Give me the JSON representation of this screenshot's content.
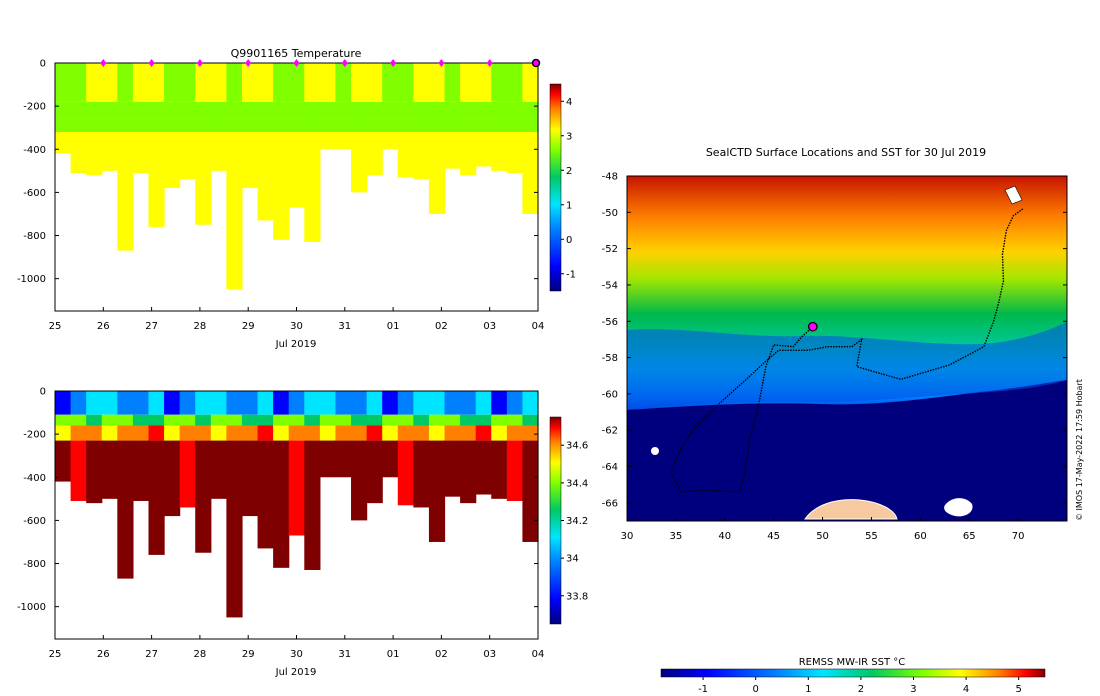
{
  "chart_data": [
    {
      "type": "heatmap",
      "id": "temperature-section",
      "title": "Q9901165  Temperature",
      "xlabel": "Jul 2019",
      "ylabel": "",
      "x_tick_labels": [
        "25",
        "26",
        "27",
        "28",
        "29",
        "30",
        "31",
        "01",
        "02",
        "03",
        "04"
      ],
      "xlim": [
        0,
        10
      ],
      "y_tick_values": [
        0,
        -200,
        -400,
        -600,
        -800,
        -1000
      ],
      "ylim": [
        -1150,
        0
      ],
      "profile_markers_x": [
        1,
        2,
        3,
        4,
        5,
        6,
        7,
        8,
        9
      ],
      "last_profile_x": 10,
      "profile_depths": [
        -420,
        -510,
        -520,
        -500,
        -870,
        -510,
        -760,
        -580,
        -540,
        -750,
        -500,
        -1050,
        -580,
        -730,
        -820,
        -670,
        -830,
        -400,
        -400,
        -600,
        -520,
        -400,
        -530,
        -540,
        -700,
        -490,
        -520,
        -480,
        -500,
        -510,
        -700
      ],
      "colorbar": {
        "min": -1.5,
        "max": 4.5,
        "ticks": [
          -1,
          0,
          1,
          2,
          3,
          4
        ],
        "palette": "jet-dark"
      },
      "bands": [
        {
          "from_depth": 0,
          "to_depth": -180,
          "value": 2.1
        },
        {
          "from_depth": -180,
          "to_depth": -260,
          "value": 1.7
        },
        {
          "from_depth": -260,
          "to_depth": -320,
          "value": 1.9
        },
        {
          "from_depth": -320,
          "to_depth": -1100,
          "value": 2.4
        }
      ]
    },
    {
      "type": "heatmap",
      "id": "salinity-section",
      "title": "",
      "xlabel": "Jul 2019",
      "ylabel": "",
      "x_tick_labels": [
        "25",
        "26",
        "27",
        "28",
        "29",
        "30",
        "31",
        "01",
        "02",
        "03",
        "04"
      ],
      "xlim": [
        0,
        10
      ],
      "y_tick_values": [
        0,
        -200,
        -400,
        -600,
        -800,
        -1000
      ],
      "ylim": [
        -1150,
        0
      ],
      "colorbar": {
        "min": 33.65,
        "max": 34.75,
        "ticks": [
          33.8,
          34,
          34.2,
          34.4,
          34.6
        ],
        "palette": "jet-dark"
      },
      "bands": [
        {
          "from_depth": 0,
          "to_depth": -110,
          "value": 33.95
        },
        {
          "from_depth": -110,
          "to_depth": -160,
          "value": 34.2
        },
        {
          "from_depth": -160,
          "to_depth": -230,
          "value": 34.45
        },
        {
          "from_depth": -230,
          "to_depth": -1100,
          "value": 34.72
        }
      ]
    },
    {
      "type": "heatmap",
      "id": "sst-map",
      "title": "SealCTD Surface Locations and SST for 30 Jul 2019",
      "x_tick_labels": [
        "30",
        "35",
        "40",
        "45",
        "50",
        "55",
        "60",
        "65",
        "70"
      ],
      "x_tick_values": [
        30,
        35,
        40,
        45,
        50,
        55,
        60,
        65,
        70
      ],
      "xlim": [
        30,
        75
      ],
      "y_tick_values": [
        -48,
        -50,
        -52,
        -54,
        -56,
        -58,
        -60,
        -62,
        -64,
        -66
      ],
      "ylim": [
        -67,
        -48
      ],
      "current_position": {
        "lon": 49,
        "lat": -56.3
      },
      "track": [
        [
          49,
          -56.3
        ],
        [
          47.8,
          -56.9
        ],
        [
          47,
          -57.4
        ],
        [
          45,
          -57.3
        ],
        [
          44.2,
          -58.5
        ],
        [
          43.5,
          -60.5
        ],
        [
          42.5,
          -62.6
        ],
        [
          42,
          -64.5
        ],
        [
          41.5,
          -65.4
        ],
        [
          38,
          -65.3
        ],
        [
          35.5,
          -65.4
        ],
        [
          34.5,
          -64.3
        ],
        [
          35.5,
          -63
        ],
        [
          37,
          -61.8
        ],
        [
          39.5,
          -60.5
        ],
        [
          42,
          -59.3
        ],
        [
          44,
          -58.3
        ],
        [
          45.5,
          -57.6
        ],
        [
          48.5,
          -57.6
        ],
        [
          50.5,
          -57.4
        ],
        [
          53,
          -57.4
        ],
        [
          54,
          -57
        ],
        [
          53.5,
          -58.5
        ],
        [
          58,
          -59.2
        ],
        [
          63,
          -58.4
        ],
        [
          66.5,
          -57.4
        ],
        [
          67.5,
          -56
        ],
        [
          68,
          -55
        ],
        [
          68.5,
          -53.8
        ],
        [
          68.4,
          -52.3
        ],
        [
          68.8,
          -51
        ],
        [
          69.5,
          -50.2
        ],
        [
          70.5,
          -49.8
        ]
      ],
      "colorbar": {
        "label": "REMSS MW-IR SST °C",
        "min": -1.8,
        "max": 5.5,
        "ticks": [
          -1,
          0,
          1,
          2,
          3,
          4,
          5
        ],
        "palette": "jet-dark"
      },
      "credit": "© IMOS 17-May-2022 17:59 Hobart"
    }
  ],
  "colors": {
    "palette": [
      "#00007f",
      "#0000ff",
      "#0080ff",
      "#00e5ff",
      "#00c864",
      "#7fff00",
      "#ffff00",
      "#ff8000",
      "#ff0000",
      "#7f0000"
    ],
    "land": "#f7c9a1",
    "marker": "#ff00ff",
    "track": "#000000"
  }
}
